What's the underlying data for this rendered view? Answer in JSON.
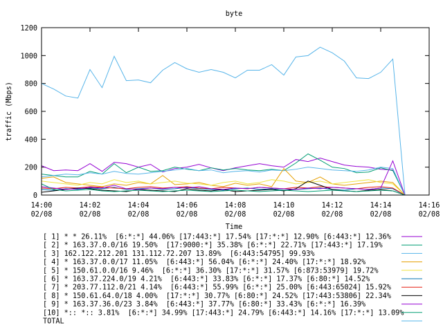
{
  "chart_data": {
    "type": "line",
    "title": "byte",
    "x_label": "Time",
    "y_label": "traffic (Mbps)",
    "xlim": [
      0,
      16
    ],
    "ylim": [
      0,
      1200
    ],
    "xticks": [
      {
        "value": 0,
        "label": "14:00",
        "date": "02/08"
      },
      {
        "value": 2,
        "label": "14:02",
        "date": "02/08"
      },
      {
        "value": 4,
        "label": "14:04",
        "date": "02/08"
      },
      {
        "value": 6,
        "label": "14:06",
        "date": "02/08"
      },
      {
        "value": 8,
        "label": "14:08",
        "date": "02/08"
      },
      {
        "value": 10,
        "label": "14:10",
        "date": "02/08"
      },
      {
        "value": 12,
        "label": "14:12",
        "date": "02/08"
      },
      {
        "value": 14,
        "label": "14:14",
        "date": "02/08"
      },
      {
        "value": 16,
        "label": "14:16",
        "date": "02/08"
      }
    ],
    "yticks": [
      0,
      200,
      400,
      600,
      800,
      1000,
      1200
    ],
    "x": [
      0,
      0.5,
      1,
      1.5,
      2,
      2.5,
      3,
      3.5,
      4,
      4.5,
      5,
      5.5,
      6,
      6.5,
      7,
      7.5,
      8,
      8.5,
      9,
      9.5,
      10,
      10.5,
      11,
      11.5,
      12,
      12.5,
      13,
      13.5,
      14,
      14.5,
      15
    ],
    "series": [
      {
        "name": "[ 1] * * 26.11%  [6:*:*] 44.06% [17:443:*] 17.54% [17:*:*] 12.90% [6:443:*] 12.36%",
        "color": "#9400d3",
        "values": [
          210,
          175,
          180,
          175,
          225,
          170,
          235,
          225,
          200,
          220,
          165,
          190,
          200,
          220,
          195,
          175,
          195,
          210,
          225,
          210,
          200,
          255,
          240,
          265,
          240,
          215,
          205,
          200,
          185,
          180,
          0
        ]
      },
      {
        "name": "[ 2] * 163.37.0.0/16 19.50%  [17:9000:*] 35.38% [6:*:*] 22.71% [17:443:*] 17.19%",
        "color": "#009e73",
        "values": [
          150,
          140,
          130,
          130,
          170,
          150,
          225,
          160,
          200,
          170,
          175,
          200,
          185,
          175,
          195,
          180,
          190,
          180,
          175,
          185,
          175,
          230,
          295,
          250,
          200,
          190,
          160,
          165,
          195,
          175,
          0
        ]
      },
      {
        "name": "[ 3] 162.122.212.201 131.112.72.207 13.89%  [6:443:54795] 99.93%",
        "color": "#56b4e9",
        "values": [
          130,
          140,
          150,
          145,
          160,
          150,
          170,
          155,
          150,
          160,
          170,
          180,
          190,
          175,
          180,
          160,
          170,
          175,
          165,
          180,
          175,
          185,
          200,
          190,
          180,
          175,
          170,
          180,
          200,
          190,
          0
        ]
      },
      {
        "name": "[ 4] * 163.37.0.0/17 11.05%  [6:443:*] 56.04% [6:*:*] 24.40% [17:*:*] 18.92%",
        "color": "#e69f00",
        "values": [
          120,
          130,
          90,
          80,
          70,
          60,
          80,
          70,
          90,
          80,
          140,
          75,
          80,
          90,
          70,
          60,
          85,
          70,
          80,
          60,
          190,
          100,
          90,
          130,
          80,
          70,
          80,
          90,
          100,
          90,
          0
        ]
      },
      {
        "name": "[ 5] * 150.61.0.0/16 9.46%  [6:*:*] 36.30% [17:*:*] 31.57% [6:873:53979] 19.72%",
        "color": "#f0e442",
        "values": [
          100,
          90,
          80,
          70,
          90,
          80,
          110,
          90,
          100,
          80,
          90,
          100,
          85,
          80,
          70,
          90,
          100,
          80,
          90,
          110,
          100,
          80,
          90,
          100,
          80,
          90,
          100,
          110,
          90,
          80,
          0
        ]
      },
      {
        "name": "[ 6] * 163.37.224.0/19 4.21%  [6:443:*] 33.83% [6:*:*] 17.37% [6:80:*] 14.52%",
        "color": "#0072b2",
        "values": [
          40,
          35,
          45,
          40,
          50,
          45,
          55,
          40,
          45,
          50,
          40,
          45,
          55,
          45,
          40,
          35,
          45,
          50,
          40,
          45,
          35,
          40,
          45,
          50,
          40,
          35,
          45,
          40,
          50,
          45,
          0
        ]
      },
      {
        "name": "[ 7] * 203.77.112.0/21 4.14%  [6:443:*] 55.99% [6:*:*] 25.00% [6:443:65024] 15.92%",
        "color": "#e51e10",
        "values": [
          50,
          45,
          55,
          50,
          60,
          55,
          50,
          45,
          55,
          60,
          50,
          55,
          60,
          50,
          45,
          55,
          50,
          45,
          55,
          50,
          45,
          55,
          50,
          60,
          55,
          50,
          45,
          55,
          60,
          50,
          0
        ]
      },
      {
        "name": "[ 8] * 150.61.64.0/18 4.00%  [17:*:*] 30.77% [6:80:*] 24.52% [17:443:53806] 22.34%",
        "color": "#000000",
        "values": [
          20,
          30,
          40,
          50,
          45,
          35,
          30,
          25,
          40,
          35,
          30,
          25,
          45,
          35,
          30,
          40,
          25,
          30,
          35,
          40,
          30,
          45,
          100,
          70,
          40,
          30,
          25,
          35,
          40,
          30,
          0
        ]
      },
      {
        "name": "[ 9] * 163.37.36.0/23 3.84%  [6:443:*] 37.77% [6:80:*] 33.43% [6:*:*] 16.39%",
        "color": "#9400d3",
        "values": [
          60,
          50,
          40,
          45,
          55,
          50,
          70,
          45,
          40,
          50,
          45,
          55,
          50,
          60,
          45,
          40,
          50,
          45,
          55,
          50,
          45,
          40,
          50,
          45,
          55,
          50,
          45,
          40,
          50,
          245,
          0
        ]
      },
      {
        "name": "[10] *:: *:: 3.81%  [6:*:*] 34.99% [17:443:*] 24.79% [6:443:*] 14.16% [17:*:*] 13.09%",
        "color": "#009e73",
        "values": [
          80,
          40,
          30,
          35,
          40,
          30,
          25,
          30,
          35,
          30,
          25,
          30,
          35,
          30,
          25,
          30,
          35,
          30,
          25,
          30,
          35,
          30,
          25,
          30,
          35,
          30,
          25,
          30,
          35,
          30,
          0
        ]
      },
      {
        "name": "TOTAL",
        "color": "#56b4e9",
        "values": [
          800,
          760,
          710,
          695,
          900,
          770,
          995,
          820,
          825,
          805,
          895,
          950,
          905,
          880,
          900,
          880,
          840,
          895,
          895,
          935,
          860,
          990,
          1000,
          1060,
          1020,
          960,
          840,
          835,
          880,
          975,
          5
        ]
      }
    ]
  }
}
